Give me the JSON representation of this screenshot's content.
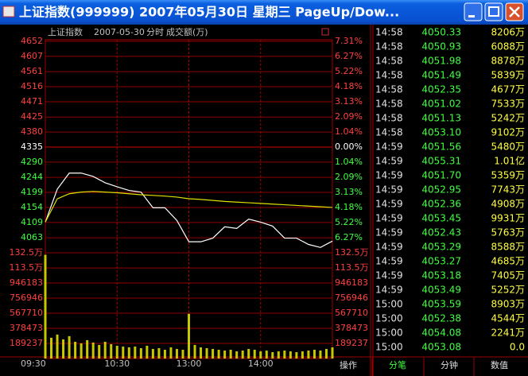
{
  "window": {
    "title": "上证指数(999999) 2007年05月30日 星期三 PageUp/Dow..."
  },
  "chart_data": {
    "type": "line",
    "header": {
      "name": "上证指数",
      "date": "2007-05-30",
      "mode": "分时",
      "volume_label": "成交额(万)"
    },
    "xlim": [
      0,
      240
    ],
    "xticks": [
      {
        "value": 0,
        "label": "09:30"
      },
      {
        "value": 60,
        "label": "10:30"
      },
      {
        "value": 120,
        "label": "13:00"
      },
      {
        "value": 180,
        "label": "14:00"
      }
    ],
    "ylim": [
      4018,
      4652
    ],
    "yticks": [
      4652,
      4607,
      4561,
      4516,
      4471,
      4425,
      4380,
      4335,
      4290,
      4244,
      4199,
      4154,
      4109,
      4063
    ],
    "base": 4335,
    "y2lim": [
      -7.31,
      7.31
    ],
    "y2ticks": [
      {
        "value": 7.31,
        "label": "7.31%"
      },
      {
        "value": 6.27,
        "label": "6.27%"
      },
      {
        "value": 5.22,
        "label": "5.22%"
      },
      {
        "value": 4.18,
        "label": "4.18%"
      },
      {
        "value": 3.13,
        "label": "3.13%"
      },
      {
        "value": 2.09,
        "label": "2.09%"
      },
      {
        "value": 1.04,
        "label": "1.04%"
      },
      {
        "value": 0,
        "label": "0.00%"
      },
      {
        "value": -1.04,
        "label": "1.04%"
      },
      {
        "value": -2.09,
        "label": "2.09%"
      },
      {
        "value": -3.13,
        "label": "3.13%"
      },
      {
        "value": -4.18,
        "label": "4.18%"
      },
      {
        "value": -5.22,
        "label": "5.22%"
      },
      {
        "value": -6.27,
        "label": "6.27%"
      }
    ],
    "price_x": [
      0,
      10,
      20,
      30,
      40,
      50,
      60,
      70,
      80,
      90,
      100,
      110,
      120,
      130,
      140,
      150,
      160,
      170,
      180,
      190,
      200,
      210,
      220,
      230,
      240
    ],
    "series": [
      {
        "color": "#ffffff",
        "values": [
          4110,
          4209,
          4257,
          4257,
          4247,
          4228,
          4216,
          4205,
          4200,
          4153,
          4153,
          4115,
          4051,
          4051,
          4062,
          4096,
          4091,
          4119,
          4110,
          4098,
          4062,
          4062,
          4043,
          4034,
          4053
        ]
      },
      {
        "color": "#e0e000",
        "values": [
          4110,
          4180,
          4195,
          4200,
          4202,
          4200,
          4198,
          4195,
          4192,
          4190,
          4188,
          4185,
          4180,
          4178,
          4175,
          4172,
          4170,
          4168,
          4166,
          4164,
          4162,
          4160,
          4158,
          4156,
          4154
        ]
      }
    ],
    "volume": {
      "color": "#c8c800",
      "vlim": [
        0,
        1325000
      ],
      "vticks": [
        {
          "value": 1325000,
          "label": "132.5万"
        },
        {
          "value": 1135000,
          "label": "113.5万"
        },
        946183,
        756946,
        567710,
        378473,
        189237
      ],
      "x": [
        0,
        5,
        10,
        15,
        20,
        25,
        30,
        35,
        40,
        45,
        50,
        55,
        60,
        65,
        70,
        75,
        80,
        85,
        90,
        95,
        100,
        105,
        110,
        115,
        120,
        125,
        130,
        135,
        140,
        145,
        150,
        155,
        160,
        165,
        170,
        175,
        180,
        185,
        190,
        195,
        200,
        205,
        210,
        215,
        220,
        225,
        230,
        235,
        240
      ],
      "values": [
        1300000,
        260000,
        300000,
        240000,
        280000,
        210000,
        190000,
        230000,
        200000,
        170000,
        210000,
        180000,
        160000,
        150000,
        140000,
        150000,
        130000,
        160000,
        120000,
        130000,
        110000,
        140000,
        120000,
        110000,
        560000,
        170000,
        140000,
        130000,
        120000,
        110000,
        100000,
        110000,
        90000,
        100000,
        120000,
        110000,
        90000,
        100000,
        80000,
        90000,
        100000,
        90000,
        80000,
        90000,
        100000,
        110000,
        100000,
        120000,
        140000
      ]
    }
  },
  "trade_table": {
    "rows": [
      [
        "14:58",
        "4050.33",
        "8206万"
      ],
      [
        "14:58",
        "4050.93",
        "6088万"
      ],
      [
        "14:58",
        "4051.98",
        "8878万"
      ],
      [
        "14:58",
        "4051.49",
        "5839万"
      ],
      [
        "14:58",
        "4052.35",
        "4677万"
      ],
      [
        "14:58",
        "4051.02",
        "7533万"
      ],
      [
        "14:58",
        "4051.13",
        "5242万"
      ],
      [
        "14:58",
        "4053.10",
        "9102万"
      ],
      [
        "14:59",
        "4051.56",
        "5480万"
      ],
      [
        "14:59",
        "4055.31",
        "1.01亿"
      ],
      [
        "14:59",
        "4051.70",
        "5359万"
      ],
      [
        "14:59",
        "4052.95",
        "7743万"
      ],
      [
        "14:59",
        "4052.36",
        "4908万"
      ],
      [
        "14:59",
        "4053.45",
        "9931万"
      ],
      [
        "14:59",
        "4052.43",
        "5763万"
      ],
      [
        "14:59",
        "4053.29",
        "8588万"
      ],
      [
        "14:59",
        "4053.27",
        "4685万"
      ],
      [
        "14:59",
        "4053.18",
        "7405万"
      ],
      [
        "14:59",
        "4053.49",
        "5252万"
      ],
      [
        "15:00",
        "4053.59",
        "8903万"
      ],
      [
        "15:00",
        "4052.38",
        "4544万"
      ],
      [
        "15:00",
        "4054.08",
        "2241万"
      ],
      [
        "15:00",
        "4053.08",
        "0.0"
      ]
    ]
  },
  "tabs": [
    "操作",
    "分笔",
    "分钟",
    "数值"
  ]
}
